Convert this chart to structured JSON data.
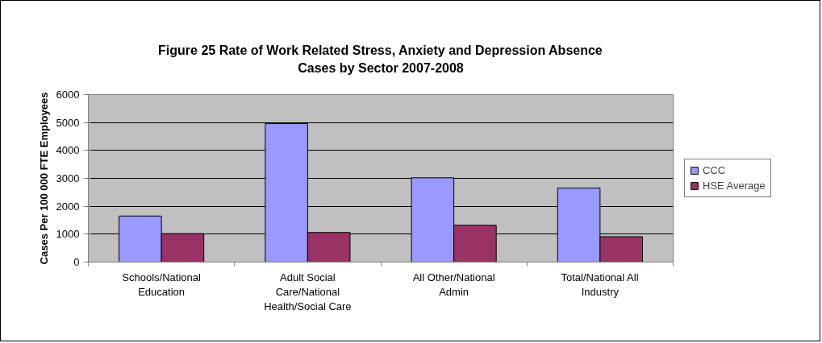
{
  "chart_data": {
    "type": "bar",
    "title": "Figure 25 Rate of Work Related Stress, Anxiety and Depression Absence Cases by Sector 2007-2008",
    "ylabel": "Cases Per 100 000 FTE Employees",
    "categories": [
      "Schools/National Education",
      "Adult Social Care/National Health/Social Care",
      "All Other/National Admin",
      "Total/National All Industry"
    ],
    "series": [
      {
        "name": "CCC",
        "color": "#9999ff",
        "values": [
          1650,
          4960,
          3020,
          2650
        ]
      },
      {
        "name": "HSE Average",
        "color": "#993366",
        "values": [
          1020,
          1060,
          1320,
          910
        ]
      }
    ],
    "ylim": [
      0,
      6000
    ],
    "yticks": [
      0,
      1000,
      2000,
      3000,
      4000,
      5000,
      6000
    ],
    "grid": "y",
    "legend": "right"
  }
}
